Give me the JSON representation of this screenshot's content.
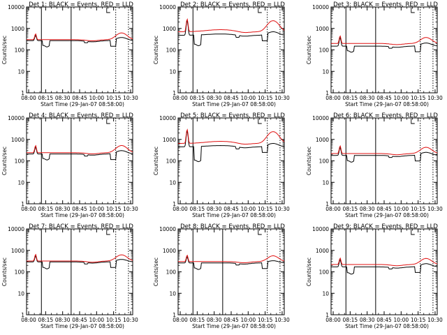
{
  "chart_data": {
    "type": "line",
    "xtick_labels": [
      "08:00",
      "08:15",
      "08:30",
      "08:45",
      "10:00",
      "10:15",
      "10:30"
    ],
    "xlabel": "Start Time (29-Jan-07 08:58:00)",
    "ylabel": "Counts/sec",
    "ytick_labels": [
      "1",
      "10",
      "100",
      "1000",
      "10000"
    ],
    "yscale": "log",
    "ylim": [
      1,
      10000
    ],
    "series_colors": {
      "events": "#000000",
      "lld": "#e01010"
    },
    "panels": [
      {
        "title": "Det 1: BLACK = Events, RED = LLD",
        "profile": "a",
        "red_base": 300,
        "black_base": 270,
        "peak": 560,
        "dip": 150,
        "flare_red": 620,
        "flare_black": 380,
        "solid_line_at": [
          0.14,
          0.42
        ]
      },
      {
        "title": "Det 2: BLACK = Events, RED = LLD",
        "profile": "b",
        "red_base": 700,
        "black_base": 480,
        "peak": 2700,
        "dip": 170,
        "flare_red": 2300,
        "flare_black": 700,
        "solid_line_at": [
          0.14
        ]
      },
      {
        "title": "Det 3: BLACK = Events, RED = LLD",
        "profile": "a",
        "red_base": 200,
        "black_base": 150,
        "peak": 450,
        "dip": 85,
        "flare_red": 380,
        "flare_black": 210,
        "solid_line_at": [
          0.14,
          0.42
        ]
      },
      {
        "title": "Det 4: BLACK = Events, RED = LLD",
        "profile": "a",
        "red_base": 240,
        "black_base": 210,
        "peak": 520,
        "dip": 120,
        "flare_red": 520,
        "flare_black": 300,
        "solid_line_at": [
          0.14,
          0.42
        ]
      },
      {
        "title": "Det 5: BLACK = Events, RED = LLD",
        "profile": "b",
        "red_base": 650,
        "black_base": 450,
        "peak": 2900,
        "dip": 100,
        "flare_red": 2300,
        "flare_black": 650,
        "solid_line_at": [
          0.14
        ]
      },
      {
        "title": "Det 6: BLACK = Events, RED = LLD",
        "profile": "a",
        "red_base": 220,
        "black_base": 180,
        "peak": 500,
        "dip": 95,
        "flare_red": 430,
        "flare_black": 250,
        "solid_line_at": [
          0.14,
          0.42
        ]
      },
      {
        "title": "Det 7: BLACK = Events, RED = LLD",
        "profile": "a",
        "red_base": 320,
        "black_base": 290,
        "peak": 650,
        "dip": 150,
        "flare_red": 620,
        "flare_black": 380,
        "solid_line_at": [
          0.14,
          0.42
        ]
      },
      {
        "title": "Det 8: BLACK = Events, RED = LLD",
        "profile": "a",
        "red_base": 300,
        "black_base": 260,
        "peak": 600,
        "dip": 140,
        "flare_red": 560,
        "flare_black": 330,
        "solid_line_at": [
          0.14,
          0.42
        ]
      },
      {
        "title": "Det 9: BLACK = Events, RED = LLD",
        "profile": "a",
        "red_base": 220,
        "black_base": 170,
        "peak": 440,
        "dip": 85,
        "flare_red": 420,
        "flare_black": 240,
        "solid_line_at": [
          0.14,
          0.42
        ]
      }
    ]
  }
}
